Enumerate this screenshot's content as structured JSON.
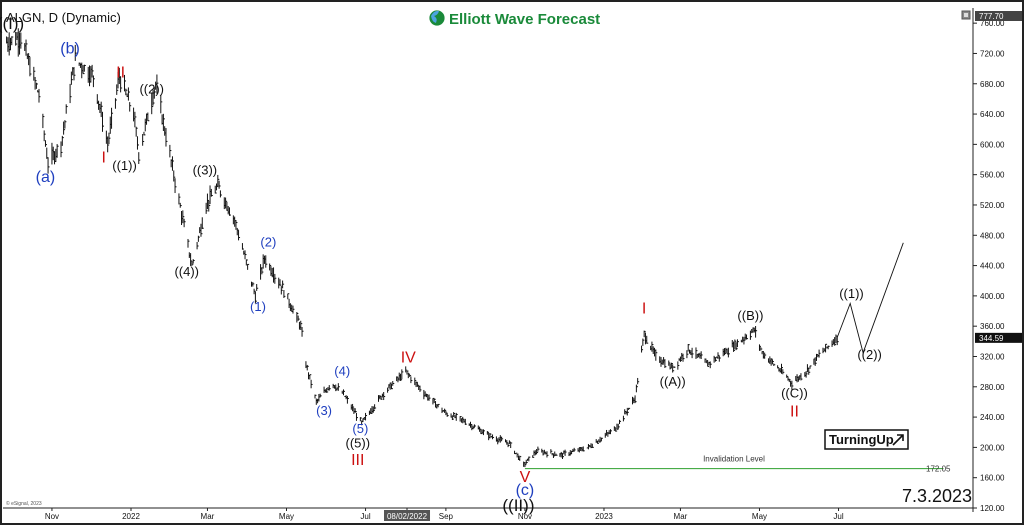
{
  "header": {
    "symbol_label": "ALGN, D (Dynamic)",
    "brand": "Elliott Wave Forecast",
    "date_stamp": "7.3.2023",
    "copyright": "© eSignal, 2023",
    "turning_up": "TurningUp"
  },
  "colors": {
    "background": "#ffffff",
    "bars": "#111111",
    "blue_labels": "#1f3fbf",
    "red_labels": "#cc1111",
    "black_labels": "#111111",
    "invalidation_line": "#2ea02e",
    "brand_green": "#1a8a3a"
  },
  "chart_data": {
    "type": "ohlc",
    "title": "ALGN, D (Dynamic)",
    "ylim": [
      120,
      780
    ],
    "y_ticks": [
      760.0,
      720.0,
      680.0,
      640.0,
      600.0,
      560.0,
      520.0,
      480.0,
      440.0,
      400.0,
      360.0,
      320.0,
      280.0,
      240.0,
      200.0,
      160.0,
      120.0
    ],
    "y_tick_labels": [
      "760.00",
      "720.00",
      "680.00",
      "640.00",
      "600.00",
      "560.00",
      "520.00",
      "480.00",
      "440.00",
      "400.00",
      "360.00",
      "320.00",
      "280.00",
      "240.00",
      "200.00",
      "160.00",
      "120.00"
    ],
    "x_range": [
      "2021-09-25",
      "2023-10-12"
    ],
    "x_ticks": [
      {
        "date": "2021-11-01",
        "label": "Nov"
      },
      {
        "date": "2022-01-01",
        "label": "2022"
      },
      {
        "date": "2022-03-01",
        "label": "Mar"
      },
      {
        "date": "2022-05-01",
        "label": "May"
      },
      {
        "date": "2022-07-01",
        "label": "Jul"
      },
      {
        "date": "2022-08-02",
        "label": "08/02/2022",
        "highlight": true
      },
      {
        "date": "2022-09-01",
        "label": "Sep"
      },
      {
        "date": "2022-11-01",
        "label": "Nov"
      },
      {
        "date": "2023-01-01",
        "label": "2023"
      },
      {
        "date": "2023-03-01",
        "label": "Mar"
      },
      {
        "date": "2023-05-01",
        "label": "May"
      },
      {
        "date": "2023-07-01",
        "label": "Jul"
      }
    ],
    "price_path": [
      [
        "2021-09-27",
        735
      ],
      [
        "2021-10-08",
        742
      ],
      [
        "2021-10-22",
        665
      ],
      [
        "2021-10-29",
        575
      ],
      [
        "2021-11-08",
        600
      ],
      [
        "2021-11-19",
        712
      ],
      [
        "2021-12-03",
        690
      ],
      [
        "2021-12-14",
        600
      ],
      [
        "2021-12-23",
        690
      ],
      [
        "2022-01-03",
        640
      ],
      [
        "2022-01-07",
        588
      ],
      [
        "2022-01-20",
        680
      ],
      [
        "2022-02-03",
        560
      ],
      [
        "2022-02-17",
        440
      ],
      [
        "2022-02-28",
        520
      ],
      [
        "2022-03-09",
        545
      ],
      [
        "2022-03-22",
        500
      ],
      [
        "2022-04-07",
        400
      ],
      [
        "2022-04-14",
        450
      ],
      [
        "2022-04-28",
        410
      ],
      [
        "2022-05-12",
        360
      ],
      [
        "2022-05-16",
        310
      ],
      [
        "2022-05-24",
        260
      ],
      [
        "2022-06-05",
        285
      ],
      [
        "2022-06-14",
        270
      ],
      [
        "2022-06-28",
        232
      ],
      [
        "2022-07-15",
        272
      ],
      [
        "2022-08-01",
        300
      ],
      [
        "2022-08-16",
        270
      ],
      [
        "2022-09-01",
        245
      ],
      [
        "2022-09-15",
        235
      ],
      [
        "2022-10-05",
        215
      ],
      [
        "2022-10-20",
        205
      ],
      [
        "2022-10-31",
        177
      ],
      [
        "2022-11-10",
        195
      ],
      [
        "2022-11-29",
        190
      ],
      [
        "2022-12-20",
        200
      ],
      [
        "2023-01-10",
        225
      ],
      [
        "2023-01-25",
        265
      ],
      [
        "2023-02-01",
        350
      ],
      [
        "2023-02-10",
        320
      ],
      [
        "2023-02-23",
        305
      ],
      [
        "2023-03-07",
        330
      ],
      [
        "2023-03-22",
        310
      ],
      [
        "2023-04-12",
        335
      ],
      [
        "2023-04-27",
        355
      ],
      [
        "2023-05-03",
        325
      ],
      [
        "2023-05-18",
        300
      ],
      [
        "2023-05-26",
        285
      ],
      [
        "2023-06-06",
        300
      ],
      [
        "2023-06-16",
        322
      ],
      [
        "2023-06-30",
        345
      ]
    ],
    "last_price": 344.59,
    "last_price_label": "344.59",
    "top_price_label": "777.70",
    "projection": [
      [
        "2023-06-30",
        345
      ],
      [
        "2023-07-10",
        390
      ],
      [
        "2023-07-20",
        325
      ],
      [
        "2023-08-20",
        470
      ]
    ],
    "invalidation": {
      "level": 172.05,
      "label": "Invalidation Level",
      "value_label": "172.05",
      "from": "2022-11-01",
      "to": "2023-09-20"
    },
    "wave_labels": [
      {
        "text": "((I))",
        "date": "2021-09-30",
        "price": 752,
        "color": "black",
        "size": 17
      },
      {
        "text": "(b)",
        "date": "2021-11-15",
        "price": 720,
        "color": "blue",
        "size": 16
      },
      {
        "text": "II",
        "date": "2021-12-24",
        "price": 688,
        "color": "red",
        "size": 16
      },
      {
        "text": "((2))",
        "date": "2022-01-17",
        "price": 667,
        "color": "black",
        "size": 13
      },
      {
        "text": "(a)",
        "date": "2021-10-27",
        "price": 550,
        "color": "blue",
        "size": 16
      },
      {
        "text": "I",
        "date": "2021-12-11",
        "price": 576,
        "color": "red",
        "size": 16
      },
      {
        "text": "((1))",
        "date": "2021-12-27",
        "price": 566,
        "color": "black",
        "size": 13
      },
      {
        "text": "((3))",
        "date": "2022-02-27",
        "price": 560,
        "color": "black",
        "size": 13
      },
      {
        "text": "((4))",
        "date": "2022-02-13",
        "price": 426,
        "color": "black",
        "size": 13
      },
      {
        "text": "(2)",
        "date": "2022-04-17",
        "price": 465,
        "color": "blue",
        "size": 13
      },
      {
        "text": "(1)",
        "date": "2022-04-09",
        "price": 380,
        "color": "blue",
        "size": 13
      },
      {
        "text": "(4)",
        "date": "2022-06-13",
        "price": 295,
        "color": "blue",
        "size": 13
      },
      {
        "text": "IV",
        "date": "2022-08-03",
        "price": 312,
        "color": "red",
        "size": 16
      },
      {
        "text": "(3)",
        "date": "2022-05-30",
        "price": 243,
        "color": "blue",
        "size": 13
      },
      {
        "text": "(5)",
        "date": "2022-06-27",
        "price": 219,
        "color": "blue",
        "size": 13
      },
      {
        "text": "((5))",
        "date": "2022-06-25",
        "price": 200,
        "color": "black",
        "size": 13
      },
      {
        "text": "III",
        "date": "2022-06-25",
        "price": 177,
        "color": "red",
        "size": 16
      },
      {
        "text": "V",
        "date": "2022-11-01",
        "price": 154,
        "color": "red",
        "size": 16
      },
      {
        "text": "(c)",
        "date": "2022-11-01",
        "price": 137,
        "color": "blue",
        "size": 16
      },
      {
        "text": "((II))",
        "date": "2022-10-27",
        "price": 116,
        "color": "black",
        "size": 17
      },
      {
        "text": "I",
        "date": "2023-02-01",
        "price": 377,
        "color": "red",
        "size": 16
      },
      {
        "text": "((B))",
        "date": "2023-04-24",
        "price": 368,
        "color": "black",
        "size": 13
      },
      {
        "text": "((A))",
        "date": "2023-02-23",
        "price": 281,
        "color": "black",
        "size": 13
      },
      {
        "text": "((1))",
        "date": "2023-07-11",
        "price": 397,
        "color": "black",
        "size": 13
      },
      {
        "text": "((2))",
        "date": "2023-07-25",
        "price": 317,
        "color": "black",
        "size": 13
      },
      {
        "text": "((C))",
        "date": "2023-05-28",
        "price": 266,
        "color": "black",
        "size": 13
      },
      {
        "text": "II",
        "date": "2023-05-28",
        "price": 241,
        "color": "red",
        "size": 16
      }
    ]
  }
}
